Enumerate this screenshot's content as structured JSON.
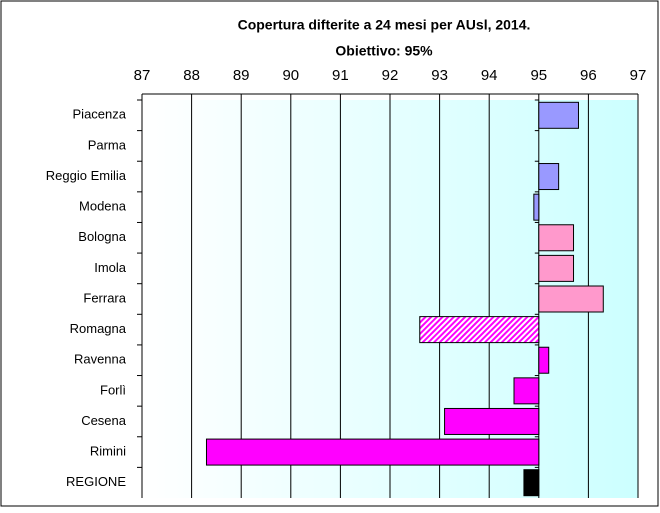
{
  "chart_data": {
    "type": "bar",
    "orientation": "horizontal",
    "title": "Copertura difterite a 24 mesi per AUsl, 2014.",
    "subtitle": "Obiettivo: 95%",
    "categories": [
      "Piacenza",
      "Parma",
      "Reggio Emilia",
      "Modena",
      "Bologna",
      "Imola",
      "Ferrara",
      "Romagna",
      "Ravenna",
      "Forlì",
      "Cesena",
      "Rimini",
      "REGIONE"
    ],
    "values": [
      95.8,
      null,
      95.4,
      94.9,
      95.7,
      95.7,
      96.3,
      92.6,
      95.2,
      94.5,
      93.1,
      88.3,
      94.7
    ],
    "colors": [
      "#9999ff",
      "#9999ff",
      "#9999ff",
      "#9999ff",
      "#ff99cc",
      "#ff99cc",
      "#ff99cc",
      "#ff00ff",
      "#ff00ff",
      "#ff00ff",
      "#ff00ff",
      "#ff00ff",
      "#000000"
    ],
    "hatch": [
      false,
      false,
      false,
      false,
      false,
      false,
      false,
      true,
      false,
      false,
      false,
      false,
      false
    ],
    "bar_base": 95,
    "xlim": [
      87,
      97
    ],
    "xticks": [
      87,
      88,
      89,
      90,
      91,
      92,
      93,
      94,
      95,
      96,
      97
    ],
    "grid": true
  }
}
